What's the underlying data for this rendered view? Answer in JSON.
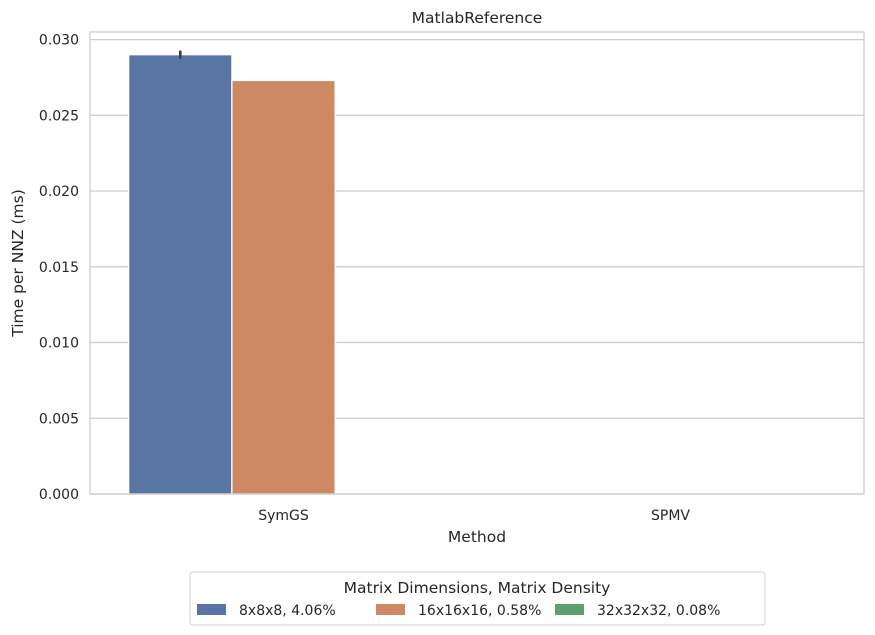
{
  "chart_data": {
    "type": "bar",
    "title": "MatlabReference",
    "xlabel": "Method",
    "ylabel": "Time per NNZ (ms)",
    "categories": [
      "SymGS",
      "SPMV"
    ],
    "series": [
      {
        "name": "8x8x8, 4.06%",
        "values": [
          0.029,
          0
        ],
        "error": [
          0.0002,
          0
        ],
        "color": "#5875a4"
      },
      {
        "name": "16x16x16, 0.58%",
        "values": [
          0.0273,
          0
        ],
        "error": [
          0.0,
          0
        ],
        "color": "#cc8963"
      },
      {
        "name": "32x32x32, 0.08%",
        "values": [
          0,
          0
        ],
        "error": [
          0,
          0
        ],
        "color": "#5f9e6e"
      }
    ],
    "ylim": [
      0,
      0.0305
    ],
    "yticks": [
      0.0,
      0.005,
      0.01,
      0.015,
      0.02,
      0.025,
      0.03
    ],
    "ytick_labels": [
      "0.000",
      "0.005",
      "0.010",
      "0.015",
      "0.020",
      "0.025",
      "0.030"
    ],
    "grid": "horizontal",
    "legend": {
      "title": "Matrix Dimensions, Matrix Density",
      "placement": "bottom-center"
    }
  }
}
